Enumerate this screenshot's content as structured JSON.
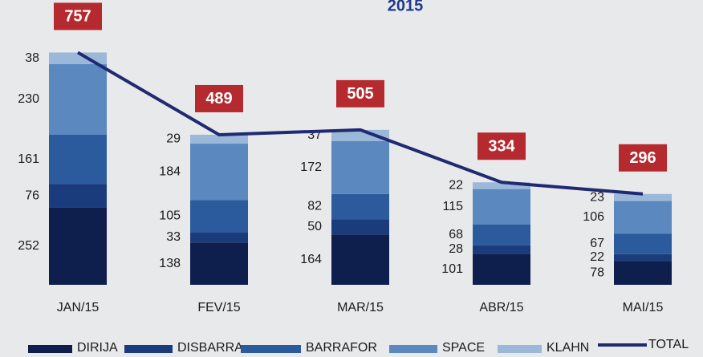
{
  "chart_data": {
    "type": "bar",
    "stacked": true,
    "title": "2015",
    "categories": [
      "JAN/15",
      "FEV/15",
      "MAR/15",
      "ABR/15",
      "MAI/15"
    ],
    "series": [
      {
        "name": "DIRIJA",
        "color": "#0e1f4d",
        "values": [
          252,
          138,
          164,
          101,
          78
        ]
      },
      {
        "name": "DISBARRA",
        "color": "#1b3c7c",
        "values": [
          76,
          33,
          50,
          28,
          22
        ]
      },
      {
        "name": "BARRAFOR",
        "color": "#2b5b9c",
        "values": [
          161,
          105,
          82,
          68,
          67
        ]
      },
      {
        "name": "SPACE",
        "color": "#5a88bf",
        "values": [
          230,
          184,
          172,
          115,
          106
        ]
      },
      {
        "name": "KLAHN",
        "color": "#9bb8d9",
        "values": [
          38,
          29,
          37,
          22,
          23
        ]
      }
    ],
    "total": {
      "name": "TOTAL",
      "type": "line",
      "color": "#1f2a72",
      "label_color": "#b52a2f",
      "values": [
        757,
        489,
        505,
        334,
        296
      ]
    },
    "ylim": [
      0,
      800
    ],
    "grid": false
  }
}
